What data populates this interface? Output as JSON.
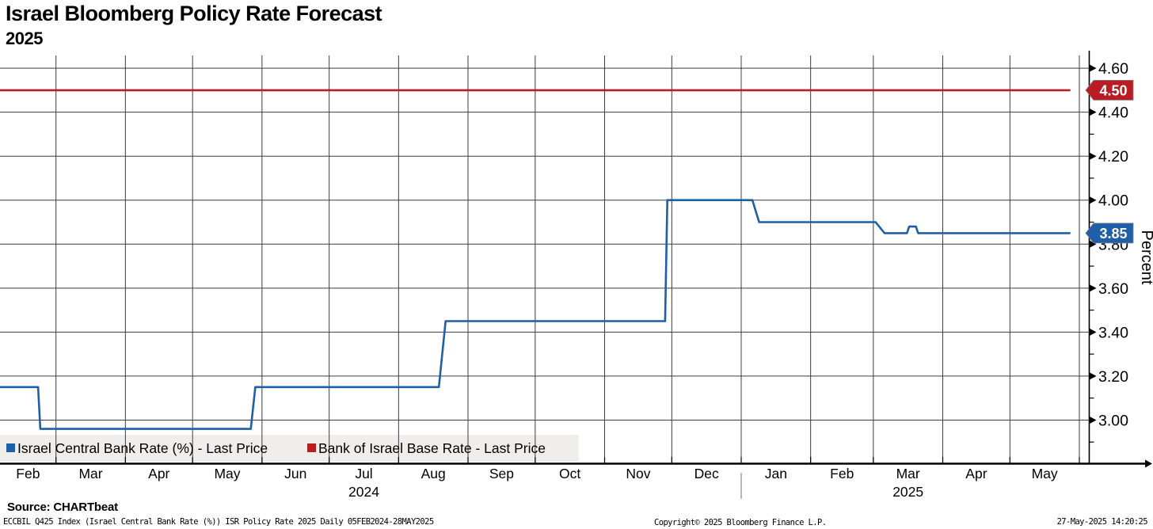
{
  "header": {
    "title": "Israel Bloomberg Policy Rate Forecast",
    "subtitle": "2025"
  },
  "chart_data": {
    "type": "line",
    "title": "Israel Bloomberg Policy Rate Forecast 2025",
    "grid": true,
    "x_axis": {
      "start_date": "2024-02-05",
      "end_date": "2025-06-01",
      "month_labels": [
        "Feb",
        "Mar",
        "Apr",
        "May",
        "Jun",
        "Jul",
        "Aug",
        "Sep",
        "Oct",
        "Nov",
        "Dec",
        "Jan",
        "Feb",
        "Mar",
        "Apr",
        "May"
      ],
      "year_labels": [
        {
          "text": "2024",
          "month_index": 5
        },
        {
          "text": "2025",
          "month_index": 13
        }
      ]
    },
    "y_axis": {
      "title": "Percent",
      "side": "right",
      "major_tick_labels": [
        "3.00",
        "3.20",
        "3.40",
        "3.60",
        "3.80",
        "4.00",
        "4.20",
        "4.40",
        "4.60"
      ],
      "minor_tick_values": [
        2.9,
        3.1,
        3.3,
        3.5,
        3.7,
        3.9,
        4.1,
        4.3,
        4.5
      ],
      "value_at_plot_top": 4.658,
      "value_at_plot_bottom": 2.8
    },
    "series": [
      {
        "name": "Israel Central Bank Rate (%) - Last Price",
        "color": "#1f5fa8",
        "last_price_label": "3.85",
        "points": [
          {
            "date": "2024-02-05",
            "value": 3.15
          },
          {
            "date": "2024-02-22",
            "value": 3.15
          },
          {
            "date": "2024-02-23",
            "value": 2.96
          },
          {
            "date": "2024-05-27",
            "value": 2.96
          },
          {
            "date": "2024-05-29",
            "value": 3.15
          },
          {
            "date": "2024-08-19",
            "value": 3.15
          },
          {
            "date": "2024-08-22",
            "value": 3.45
          },
          {
            "date": "2024-11-28",
            "value": 3.45
          },
          {
            "date": "2024-11-29",
            "value": 4.0
          },
          {
            "date": "2025-01-06",
            "value": 4.0
          },
          {
            "date": "2025-01-09",
            "value": 3.9
          },
          {
            "date": "2025-03-02",
            "value": 3.9
          },
          {
            "date": "2025-03-06",
            "value": 3.85
          },
          {
            "date": "2025-03-16",
            "value": 3.85
          },
          {
            "date": "2025-03-17",
            "value": 3.88
          },
          {
            "date": "2025-03-20",
            "value": 3.88
          },
          {
            "date": "2025-03-21",
            "value": 3.85
          },
          {
            "date": "2025-05-28",
            "value": 3.85
          }
        ]
      },
      {
        "name": "Bank of Israel Base Rate - Last Price",
        "color": "#b91c22",
        "last_price_label": "4.50",
        "points": [
          {
            "date": "2024-02-05",
            "value": 4.5
          },
          {
            "date": "2025-05-28",
            "value": 4.5
          }
        ]
      }
    ],
    "legend": {
      "position": "bottom-left",
      "background": "#efeeeb",
      "entries": [
        {
          "label": "Israel Central Bank Rate (%) - Last Price",
          "color": "#1f5fa8"
        },
        {
          "label": "Bank of Israel Base Rate - Last Price",
          "color": "#b91c22"
        }
      ]
    }
  },
  "footer": {
    "source": "Source: CHARTbeat",
    "meta": "ECCBIL Q425 Index (Israel Central Bank Rate (%)) ISR Policy Rate 2025  Daily 05FEB2024-28MAY2025",
    "copyright": "Copyright© 2025 Bloomberg Finance L.P.",
    "timestamp": "27-May-2025 14:20:25"
  }
}
